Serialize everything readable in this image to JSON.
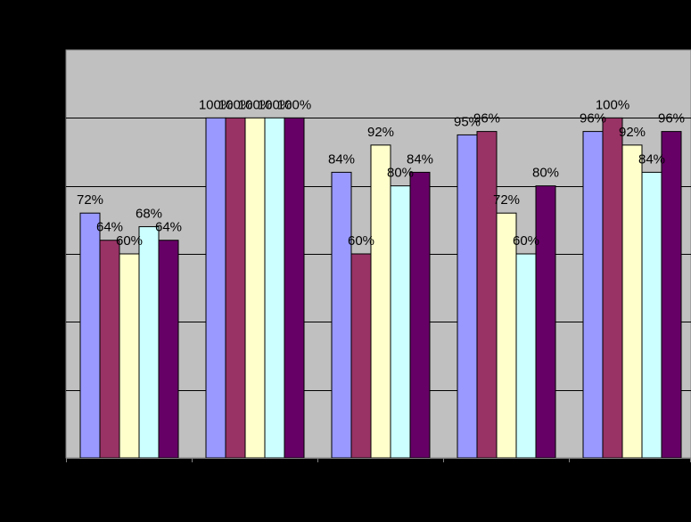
{
  "chart_data": {
    "type": "bar",
    "categories": [
      "",
      "",
      "",
      "",
      ""
    ],
    "series": [
      {
        "color": "#9999FF",
        "values": [
          72,
          100,
          84,
          95,
          96
        ]
      },
      {
        "color": "#993366",
        "values": [
          64,
          100,
          60,
          96,
          100
        ]
      },
      {
        "color": "#FFFFCC",
        "values": [
          60,
          100,
          92,
          72,
          92
        ]
      },
      {
        "color": "#CCFFFF",
        "values": [
          68,
          100,
          80,
          60,
          84
        ]
      },
      {
        "color": "#660066",
        "values": [
          64,
          100,
          84,
          80,
          96
        ]
      }
    ],
    "data_label_suffix": "%",
    "ylim": [
      0,
      120
    ],
    "gridlines": [
      20,
      40,
      60,
      80,
      100
    ],
    "grid": true,
    "legend": "none",
    "plot_background": "#C0C0C0",
    "page_background": "#000000"
  }
}
